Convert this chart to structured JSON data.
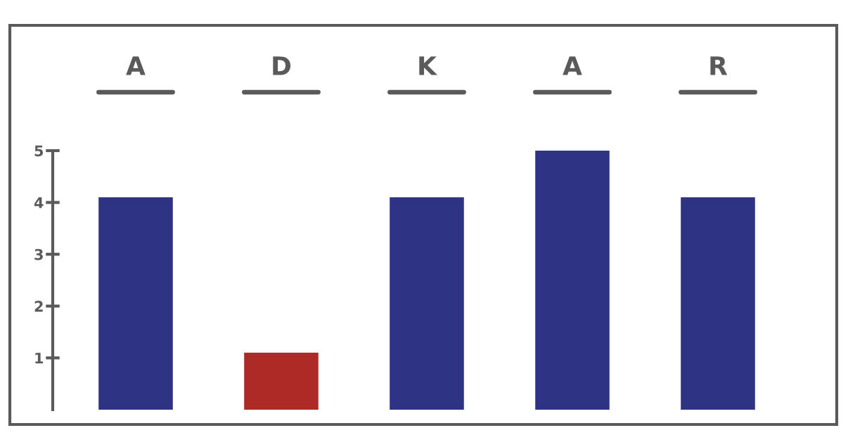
{
  "chart_data": {
    "type": "bar",
    "categories": [
      "A",
      "D",
      "K",
      "A",
      "R"
    ],
    "values": [
      4.1,
      1.1,
      4.1,
      5,
      4.1
    ],
    "colors": [
      "#2f3383",
      "#ad2a26",
      "#2f3383",
      "#2f3383",
      "#2f3383"
    ],
    "ylim": [
      0,
      5
    ],
    "yticks": [
      1,
      2,
      3,
      4,
      5
    ],
    "grid": false,
    "legend": false
  }
}
